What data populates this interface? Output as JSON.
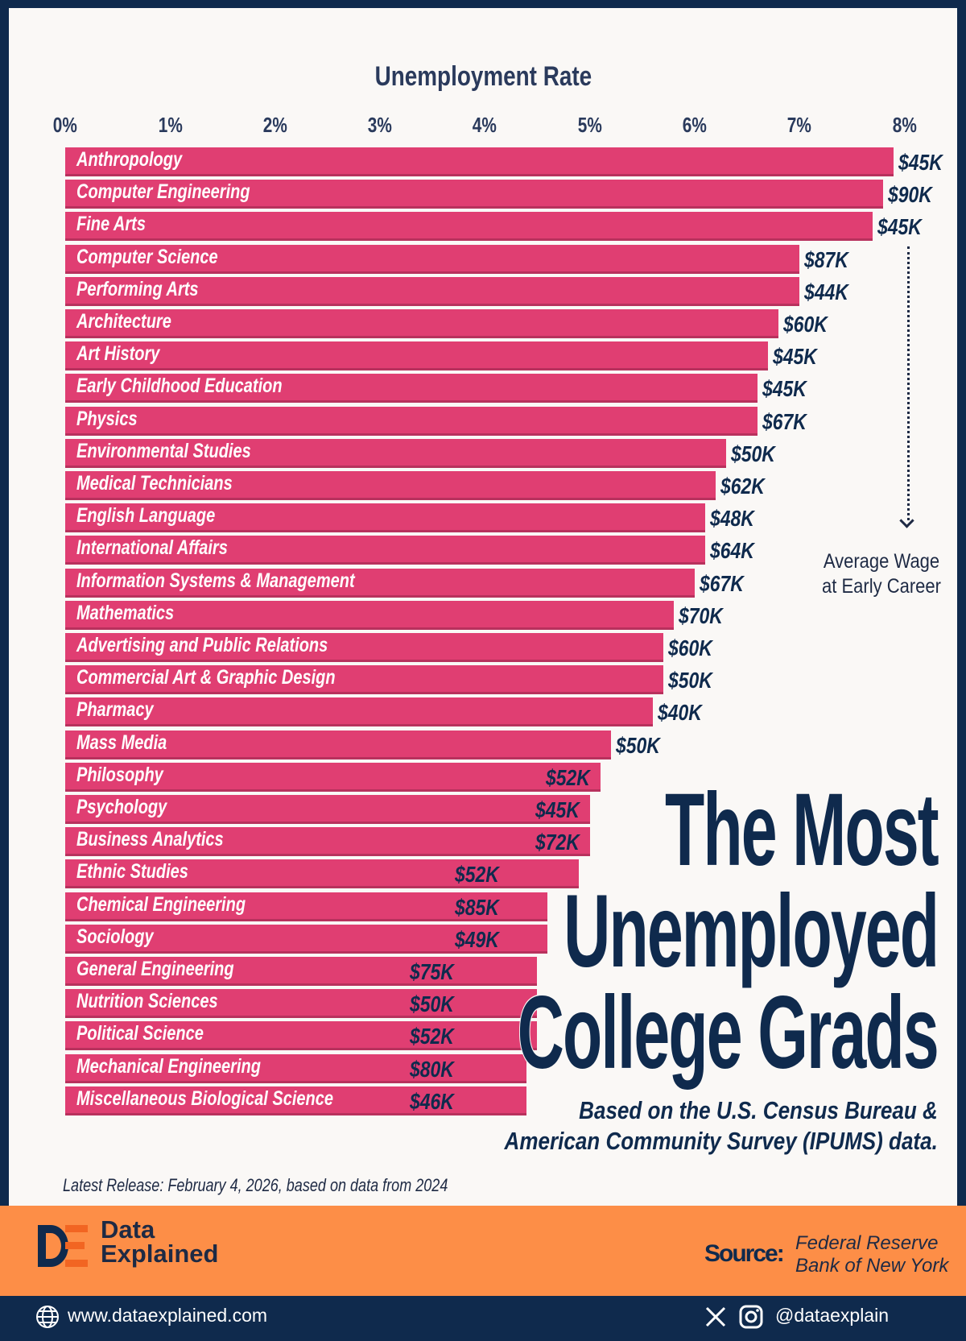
{
  "colors": {
    "bar": "#e03e72",
    "navy": "#0f2a4d",
    "orange": "#fd8e47",
    "background": "#faf8f6"
  },
  "chart_data": {
    "type": "bar",
    "orientation": "horizontal",
    "xlabel": "Unemployment Rate",
    "xlim": [
      0,
      8
    ],
    "ticks": [
      "0%",
      "1%",
      "2%",
      "3%",
      "4%",
      "5%",
      "6%",
      "7%",
      "8%"
    ],
    "grid": false,
    "categories": [
      "Anthropology",
      "Computer Engineering",
      "Fine Arts",
      "Computer Science",
      "Performing Arts",
      "Architecture",
      "Art History",
      "Early Childhood Education",
      "Physics",
      "Environmental Studies",
      "Medical Technicians",
      "English Language",
      "International Affairs",
      "Information Systems & Management",
      "Mathematics",
      "Advertising and Public Relations",
      "Commercial Art & Graphic Design",
      "Pharmacy",
      "Mass Media",
      "Philosophy",
      "Psychology",
      "Business Analytics",
      "Ethnic Studies",
      "Chemical Engineering",
      "Sociology",
      "General Engineering",
      "Nutrition Sciences",
      "Political Science",
      "Mechanical Engineering",
      "Miscellaneous Biological Science"
    ],
    "values": [
      7.9,
      7.8,
      7.7,
      7.0,
      7.0,
      6.8,
      6.7,
      6.6,
      6.6,
      6.3,
      6.2,
      6.1,
      6.1,
      6.0,
      5.8,
      5.7,
      5.7,
      5.6,
      5.2,
      5.1,
      5.0,
      5.0,
      4.9,
      4.6,
      4.6,
      4.5,
      4.5,
      4.5,
      4.4,
      4.4
    ],
    "data_labels": [
      "$45K",
      "$90K",
      "$45K",
      "$87K",
      "$44K",
      "$60K",
      "$45K",
      "$45K",
      "$67K",
      "$50K",
      "$62K",
      "$48K",
      "$64K",
      "$67K",
      "$70K",
      "$60K",
      "$50K",
      "$40K",
      "$50K",
      "$52K",
      "$45K",
      "$72K",
      "$52K",
      "$85K",
      "$49K",
      "$75K",
      "$50K",
      "$52K",
      "$80K",
      "$46K"
    ],
    "annotation": "Average Wage at Early Career"
  },
  "annotation": {
    "line1": "Average Wage",
    "line2": "at Early Career"
  },
  "title": {
    "line1": "The Most",
    "line2": "Unemployed",
    "line3": "College Grads"
  },
  "subtitle": {
    "line1": "Based on the U.S. Census Bureau &",
    "line2": "American Community Survey (IPUMS) data."
  },
  "release": "Latest Release: February 4, 2026, based on data from 2024",
  "brand": {
    "line1": "Data",
    "line2": "Explained",
    "logo": "DE"
  },
  "source": {
    "label": "Source:",
    "line1": "Federal Reserve",
    "line2": "Bank of New York"
  },
  "footer": {
    "website": "www.dataexplained.com",
    "handle": "@dataexplain",
    "icons": [
      "globe-icon",
      "x-icon",
      "instagram-icon"
    ]
  }
}
